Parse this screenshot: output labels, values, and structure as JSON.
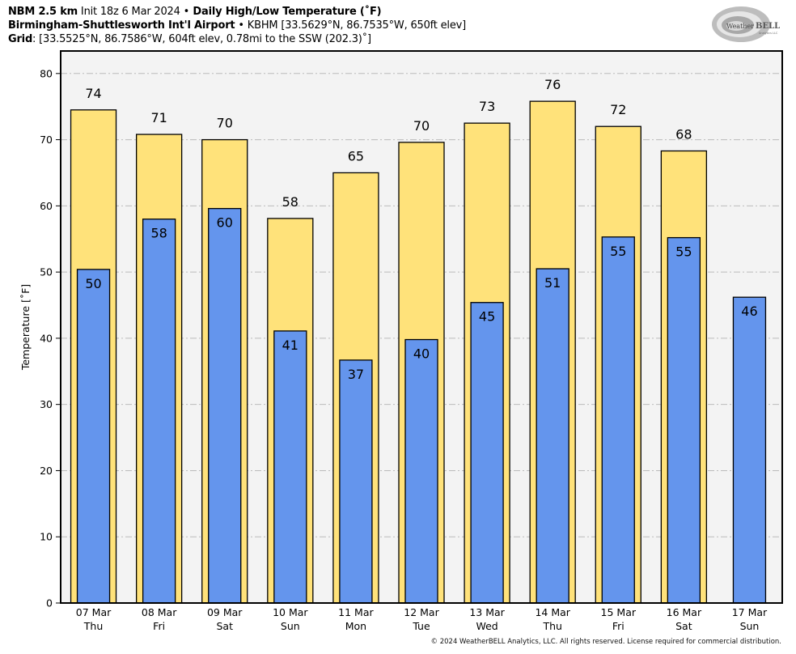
{
  "header": {
    "line1_bold_model": "NBM 2.5 km",
    "line1_init": " Init 18z 6 Mar 2024 ",
    "line1_sep": "•",
    "line1_bold_product": " Daily High/Low Temperature (˚F)",
    "line2_bold_station": "Birmingham-Shuttlesworth Int'l Airport",
    "line2_sep": " • ",
    "line2_details": "KBHM [33.5629°N, 86.7535°W, 650ft elev]",
    "line3_bold_label": "Grid",
    "line3_details": ": [33.5525°N, 86.7586°W, 604ft elev, 0.78mi to the SSW (202.3)˚]"
  },
  "logo": {
    "text_main_a": "Weather",
    "text_main_b": "BELL",
    "text_sub": "Analytics LLC"
  },
  "footer": {
    "copyright": "© 2024 WeatherBELL Analytics, LLC. All rights reserved. License required for commercial distribution."
  },
  "colors": {
    "high_bar": "#ffe27a",
    "low_bar": "#6495ed",
    "plot_background": "#f3f3f3",
    "grid": "#bbbbbb"
  },
  "chart_data": {
    "type": "bar",
    "title": "Daily High/Low Temperature (˚F)",
    "xlabel": "",
    "ylabel": "Temperature [˚F]",
    "ylim": [
      0,
      83.4
    ],
    "yticks": [
      0,
      10,
      20,
      30,
      40,
      50,
      60,
      70,
      80
    ],
    "grid": true,
    "legend": "none",
    "categories": [
      {
        "date": "07 Mar",
        "day": "Thu"
      },
      {
        "date": "08 Mar",
        "day": "Fri"
      },
      {
        "date": "09 Mar",
        "day": "Sat"
      },
      {
        "date": "10 Mar",
        "day": "Sun"
      },
      {
        "date": "11 Mar",
        "day": "Mon"
      },
      {
        "date": "12 Mar",
        "day": "Tue"
      },
      {
        "date": "13 Mar",
        "day": "Wed"
      },
      {
        "date": "14 Mar",
        "day": "Thu"
      },
      {
        "date": "15 Mar",
        "day": "Fri"
      },
      {
        "date": "16 Mar",
        "day": "Sat"
      },
      {
        "date": "17 Mar",
        "day": "Sun"
      }
    ],
    "series": [
      {
        "name": "High",
        "values": [
          74.5,
          70.8,
          70.0,
          58.1,
          65.0,
          69.6,
          72.5,
          75.8,
          72.0,
          68.3,
          null
        ],
        "labels": [
          "74",
          "71",
          "70",
          "58",
          "65",
          "70",
          "73",
          "76",
          "72",
          "68",
          null
        ]
      },
      {
        "name": "Low",
        "values": [
          50.4,
          58.0,
          59.6,
          41.1,
          36.7,
          39.8,
          45.4,
          50.5,
          55.3,
          55.2,
          46.2
        ],
        "labels": [
          "50",
          "58",
          "60",
          "41",
          "37",
          "40",
          "45",
          "51",
          "55",
          "55",
          "46"
        ]
      }
    ]
  }
}
